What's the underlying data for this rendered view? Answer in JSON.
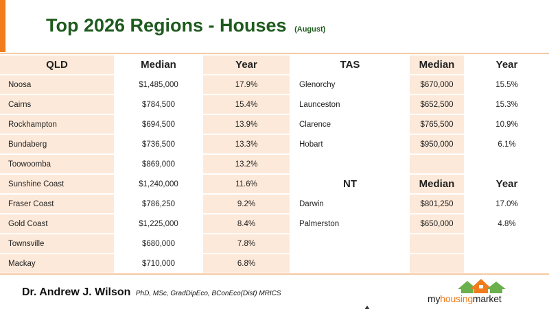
{
  "title": {
    "main": "Top 2026 Regions - Houses",
    "sub": "(August)"
  },
  "qld": {
    "headers": [
      "QLD",
      "Median",
      "Year"
    ],
    "rows": [
      {
        "region": "Noosa",
        "median": "$1,485,000",
        "year": "17.9%"
      },
      {
        "region": "Cairns",
        "median": "$784,500",
        "year": "15.4%"
      },
      {
        "region": "Rockhampton",
        "median": "$694,500",
        "year": "13.9%"
      },
      {
        "region": "Bundaberg",
        "median": "$736,500",
        "year": "13.3%"
      },
      {
        "region": "Toowoomba",
        "median": "$869,000",
        "year": "13.2%"
      },
      {
        "region": "Sunshine Coast",
        "median": "$1,240,000",
        "year": "11.6%"
      },
      {
        "region": "Fraser Coast",
        "median": "$786,250",
        "year": "9.2%"
      },
      {
        "region": "Gold Coast",
        "median": "$1,225,000",
        "year": "8.4%"
      },
      {
        "region": "Townsville",
        "median": "$680,000",
        "year": "7.8%"
      },
      {
        "region": "Mackay",
        "median": "$710,000",
        "year": "6.8%"
      }
    ]
  },
  "tas": {
    "headers": [
      "TAS",
      "Median",
      "Year"
    ],
    "rows": [
      {
        "region": "Glenorchy",
        "median": "$670,000",
        "year": "15.5%"
      },
      {
        "region": "Launceston",
        "median": "$652,500",
        "year": "15.3%"
      },
      {
        "region": "Clarence",
        "median": "$765,500",
        "year": "10.9%"
      },
      {
        "region": "Hobart",
        "median": "$950,000",
        "year": "6.1%"
      }
    ]
  },
  "nt": {
    "headers": [
      "NT",
      "Median",
      "Year"
    ],
    "rows": [
      {
        "region": "Darwin",
        "median": "$801,250",
        "year": "17.0%"
      },
      {
        "region": "Palmerston",
        "median": "$650,000",
        "year": "4.8%"
      }
    ]
  },
  "footer": {
    "author": "Dr. Andrew J. Wilson",
    "credentials": "PhD, MSc, GradDipEco, BConEco(Dist) MRICS",
    "logo_part1": "my",
    "logo_part2": "housing",
    "logo_part3": "market"
  },
  "colors": {
    "title": "#1e5a1e",
    "accent": "#f07c1c",
    "peach": "#fde9d9"
  }
}
